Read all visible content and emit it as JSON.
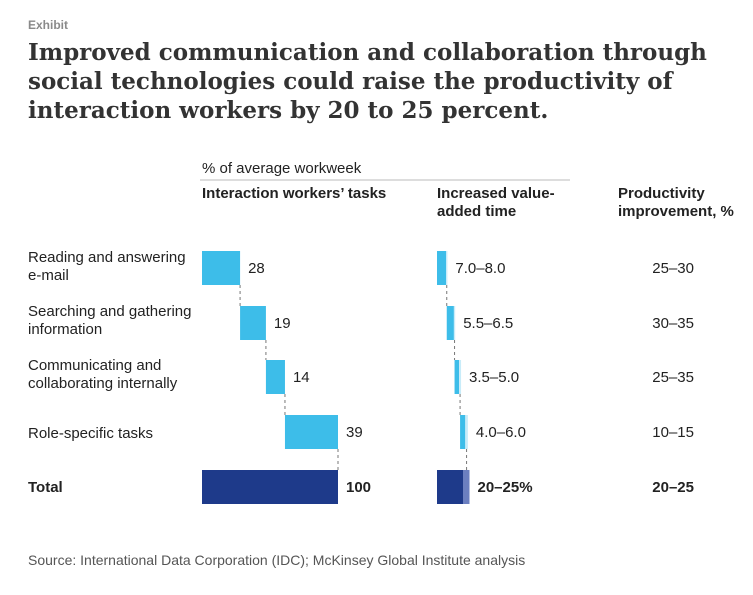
{
  "exhibit_label": "Exhibit",
  "title": "Improved communication and collaboration through social technologies could raise the productivity of interaction workers by 20 to 25 percent.",
  "columns": {
    "pct_label": "% of average workweek",
    "tasks_header": "Interaction workers’ tasks",
    "value_header": "Increased value-added time",
    "productivity_header": "Productivity improvement, %"
  },
  "source": "Source: International Data Corporation (IDC); McKinsey Global Institute analysis",
  "colors": {
    "light_bar": "#3dbde9",
    "total_bar": "#1e3a8a",
    "total_accent": "#6b7fc0",
    "light_accent": "#c8ecf9"
  },
  "chart_data": {
    "type": "bar",
    "subtype": "waterfall",
    "categories": [
      "Reading and answering e-mail",
      "Searching and gathering information",
      "Communicating and collaborating internally",
      "Role-specific tasks",
      "Total"
    ],
    "series": [
      {
        "name": "Interaction workers’ tasks",
        "values": [
          28,
          19,
          14,
          39,
          100
        ],
        "labels": [
          "28",
          "19",
          "14",
          "39",
          "100"
        ]
      },
      {
        "name": "Increased value-added time",
        "ranges": [
          [
            7.0,
            8.0
          ],
          [
            5.5,
            6.5
          ],
          [
            3.5,
            5.0
          ],
          [
            4.0,
            6.0
          ],
          [
            20,
            25
          ]
        ],
        "labels": [
          "7.0–8.0",
          "5.5–6.5",
          "3.5–5.0",
          "4.0–6.0",
          "20–25%"
        ]
      },
      {
        "name": "Productivity improvement, %",
        "labels": [
          "25–30",
          "30–35",
          "25–35",
          "10–15",
          "20–25"
        ]
      }
    ],
    "xlabel": "% of average workweek",
    "xlim": [
      0,
      100
    ]
  }
}
